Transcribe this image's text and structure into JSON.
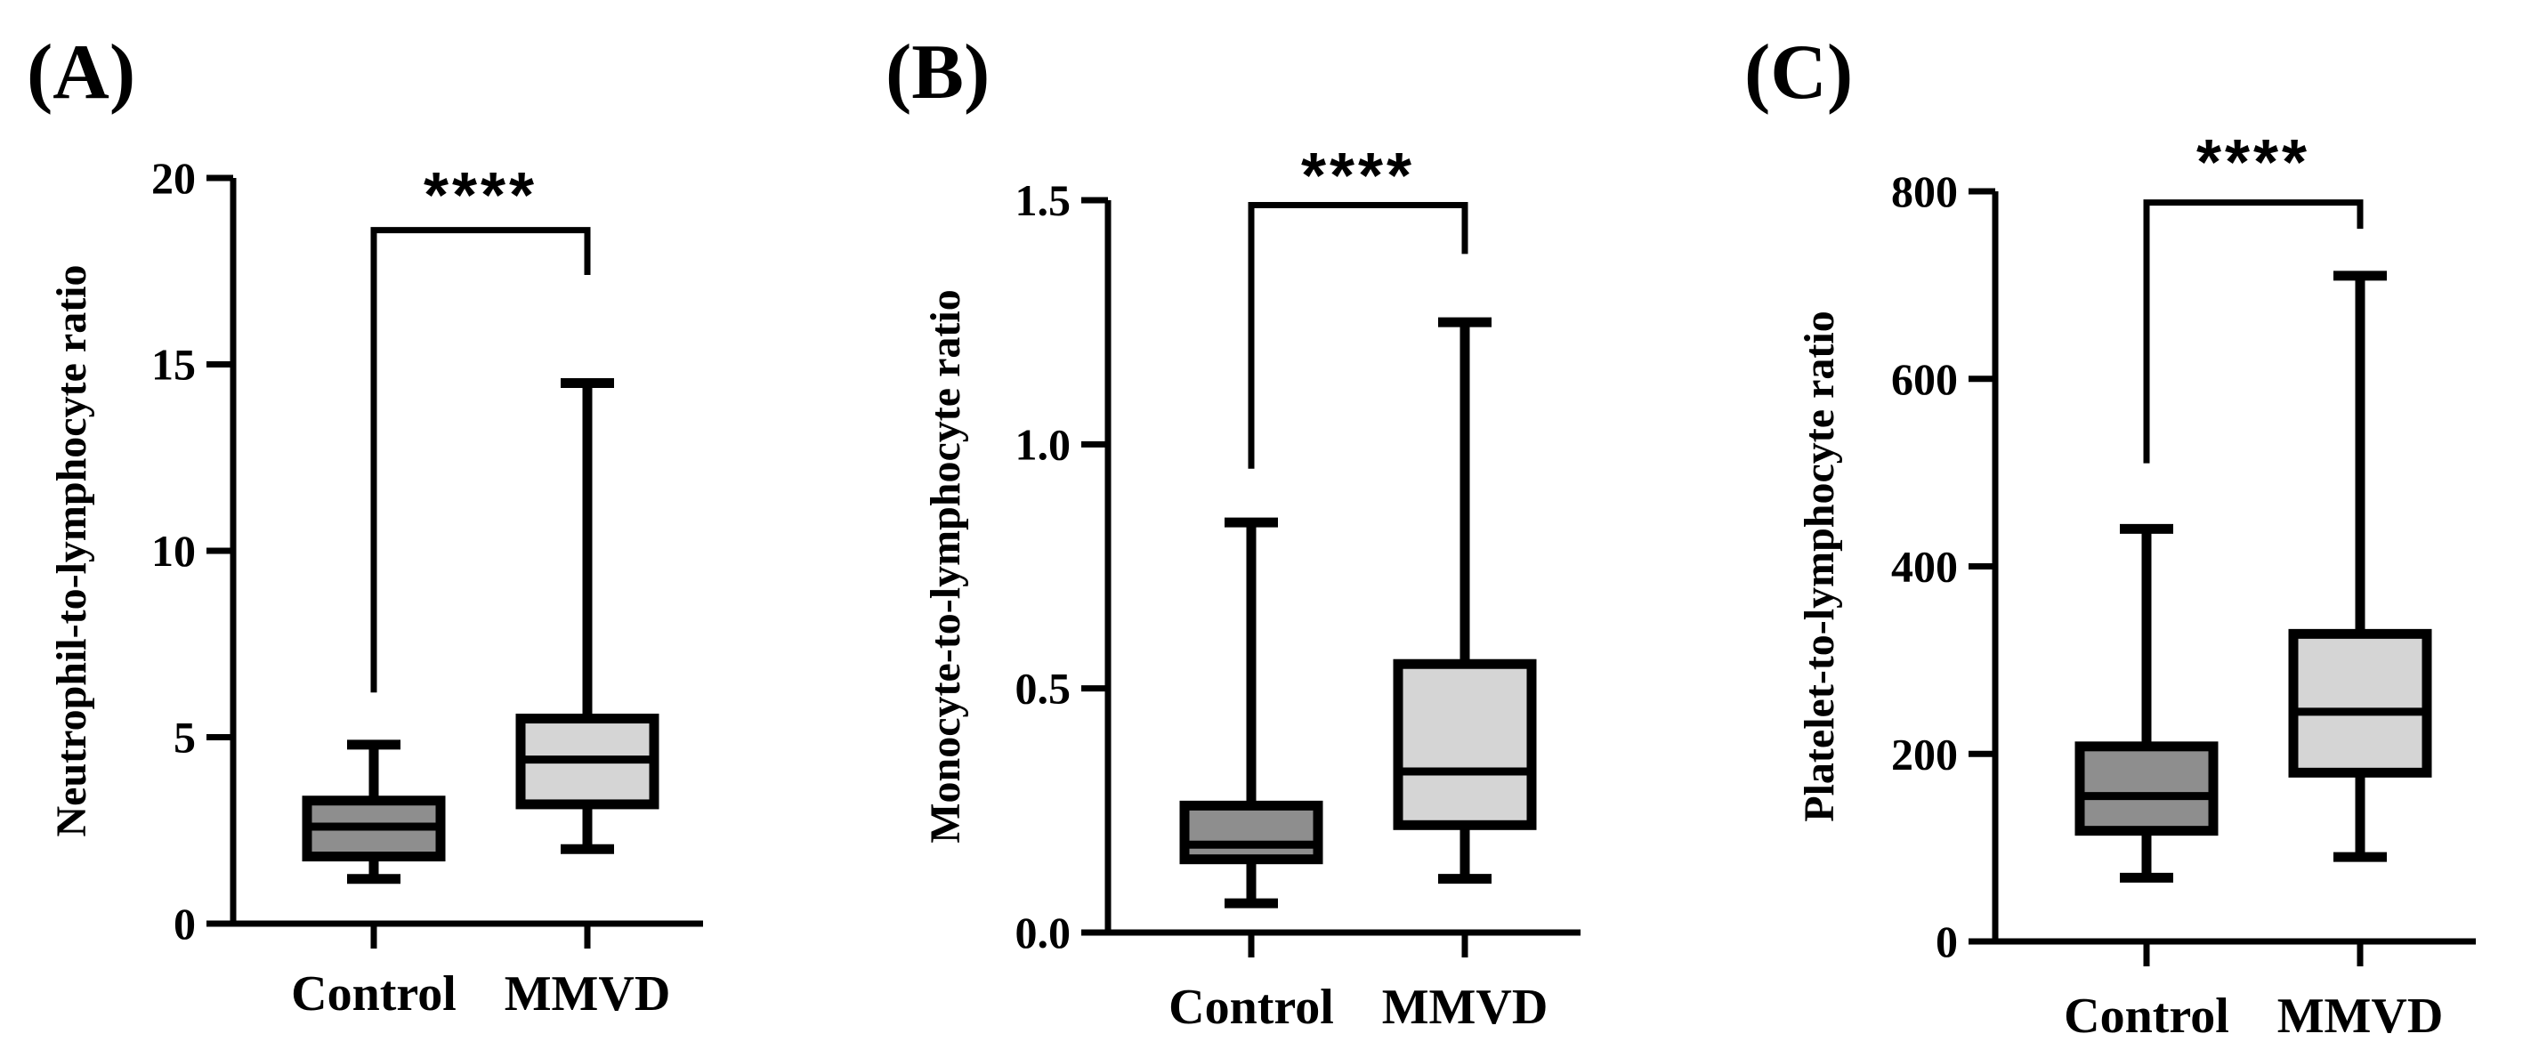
{
  "chart_data": [
    {
      "type": "box",
      "panel": "(A)",
      "ylabel": "Neutrophil-to-lymphocyte ratio",
      "ylim": [
        0,
        20
      ],
      "yticks": [
        0,
        5,
        10,
        15,
        20
      ],
      "ytick_labels": [
        "0",
        "5",
        "10",
        "15",
        "20"
      ],
      "categories": [
        "Control",
        "MMVD"
      ],
      "boxes": [
        {
          "name": "Control",
          "min": 1.2,
          "q1": 1.8,
          "median": 2.6,
          "q3": 3.3,
          "max": 4.8,
          "color": "#8e8e8e"
        },
        {
          "name": "MMVD",
          "min": 2.0,
          "q1": 3.2,
          "median": 4.4,
          "q3": 5.5,
          "max": 14.5,
          "color": "#d5d5d5"
        }
      ],
      "significance": {
        "label": "****",
        "bracket_y": 18.6,
        "left_y": 6.2,
        "right_y": 17.4
      }
    },
    {
      "type": "box",
      "panel": "(B)",
      "ylabel": "Monocyte-to-lymphocyte ratio",
      "ylim": [
        0,
        1.5
      ],
      "yticks": [
        0,
        0.5,
        1.0,
        1.5
      ],
      "ytick_labels": [
        "0.0",
        "0.5",
        "1.0",
        "1.5"
      ],
      "categories": [
        "Control",
        "MMVD"
      ],
      "boxes": [
        {
          "name": "Control",
          "min": 0.06,
          "q1": 0.15,
          "median": 0.18,
          "q3": 0.26,
          "max": 0.84,
          "color": "#8e8e8e"
        },
        {
          "name": "MMVD",
          "min": 0.11,
          "q1": 0.22,
          "median": 0.33,
          "q3": 0.55,
          "max": 1.25,
          "color": "#d5d5d5"
        }
      ],
      "significance": {
        "label": "****",
        "bracket_y": 1.49,
        "left_y": 0.95,
        "right_y": 1.39
      }
    },
    {
      "type": "box",
      "panel": "(C)",
      "ylabel": "Platelet-to-lymphocyte ratio",
      "ylim": [
        0,
        800
      ],
      "yticks": [
        0,
        200,
        400,
        600,
        800
      ],
      "ytick_labels": [
        "0",
        "200",
        "400",
        "600",
        "800"
      ],
      "categories": [
        "Control",
        "MMVD"
      ],
      "boxes": [
        {
          "name": "Control",
          "min": 68,
          "q1": 118,
          "median": 155,
          "q3": 208,
          "max": 440,
          "color": "#8e8e8e"
        },
        {
          "name": "MMVD",
          "min": 90,
          "q1": 180,
          "median": 245,
          "q3": 328,
          "max": 710,
          "color": "#d5d5d5"
        }
      ],
      "significance": {
        "label": "****",
        "bracket_y": 788,
        "left_y": 510,
        "right_y": 760
      }
    }
  ]
}
